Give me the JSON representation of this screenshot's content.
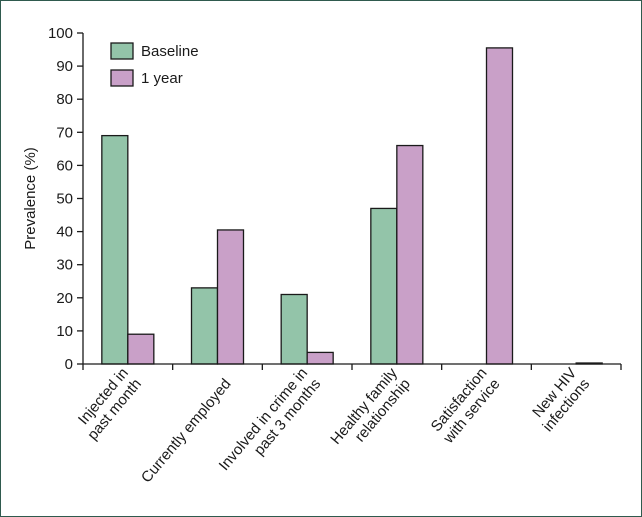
{
  "chart_data": {
    "type": "bar",
    "title": "",
    "xlabel": "",
    "ylabel": "Prevalence (%)",
    "ylim": [
      0,
      100
    ],
    "yticks": [
      0,
      10,
      20,
      30,
      40,
      50,
      60,
      70,
      80,
      90,
      100
    ],
    "categories": [
      [
        "Injected in",
        "past month"
      ],
      [
        "Currently employed"
      ],
      [
        "Involved in crime in",
        "past 3 months"
      ],
      [
        "Healthy family",
        "relationship"
      ],
      [
        "Satisfaction",
        "with service"
      ],
      [
        "New HIV",
        "infections"
      ]
    ],
    "series": [
      {
        "name": "Baseline",
        "color": "#93c4a9",
        "values": [
          69,
          23,
          21,
          47,
          null,
          null
        ]
      },
      {
        "name": "1 year",
        "color": "#c9a0c8",
        "values": [
          9,
          40.5,
          3.5,
          66,
          95.5,
          0.3
        ]
      }
    ],
    "legend_position": "top-left",
    "grid": false,
    "stroke_color": "#1a1a1a"
  }
}
